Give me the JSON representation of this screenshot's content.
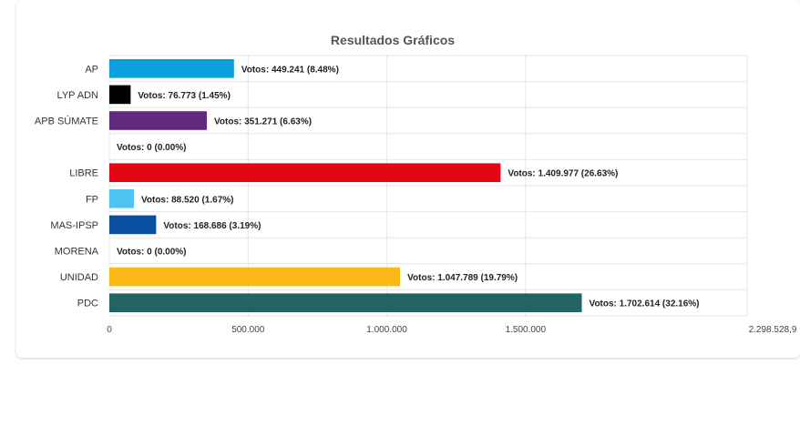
{
  "chart_data": {
    "type": "bar",
    "orientation": "horizontal",
    "title": "Resultados Gráficos",
    "xlabel": "",
    "ylabel": "",
    "xlim": [
      0,
      2298528.9
    ],
    "grid": true,
    "value_label_prefix": "Votos: ",
    "categories": [
      "AP",
      "LYP ADN",
      "APB SÚMATE",
      "",
      "LIBRE",
      "FP",
      "MAS-IPSP",
      "MORENA",
      "UNIDAD",
      "PDC"
    ],
    "values": [
      449241,
      76773,
      351271,
      0,
      1409977,
      88520,
      168686,
      0,
      1047789,
      1702614
    ],
    "value_labels": [
      "Votos: 449.241 (8.48%)",
      "Votos: 76.773 (1.45%)",
      "Votos: 351.271 (6.63%)",
      "Votos: 0 (0.00%)",
      "Votos: 1.409.977 (26.63%)",
      "Votos: 88.520 (1.67%)",
      "Votos: 168.686 (3.19%)",
      "Votos: 0 (0.00%)",
      "Votos: 1.047.789 (19.79%)",
      "Votos: 1.702.614 (32.16%)"
    ],
    "colors": [
      "#0aa0e0",
      "#000000",
      "#62297e",
      "#cccccc",
      "#e30613",
      "#4fc3f0",
      "#0a4fa0",
      "#8b1a1a",
      "#fbb917",
      "#226364"
    ],
    "x_ticks": [
      0,
      500000,
      1000000,
      1500000,
      2298528.9
    ],
    "x_tick_labels": [
      "0",
      "500.000",
      "1.000.000",
      "1.500.000",
      "2.298.528,9"
    ]
  }
}
